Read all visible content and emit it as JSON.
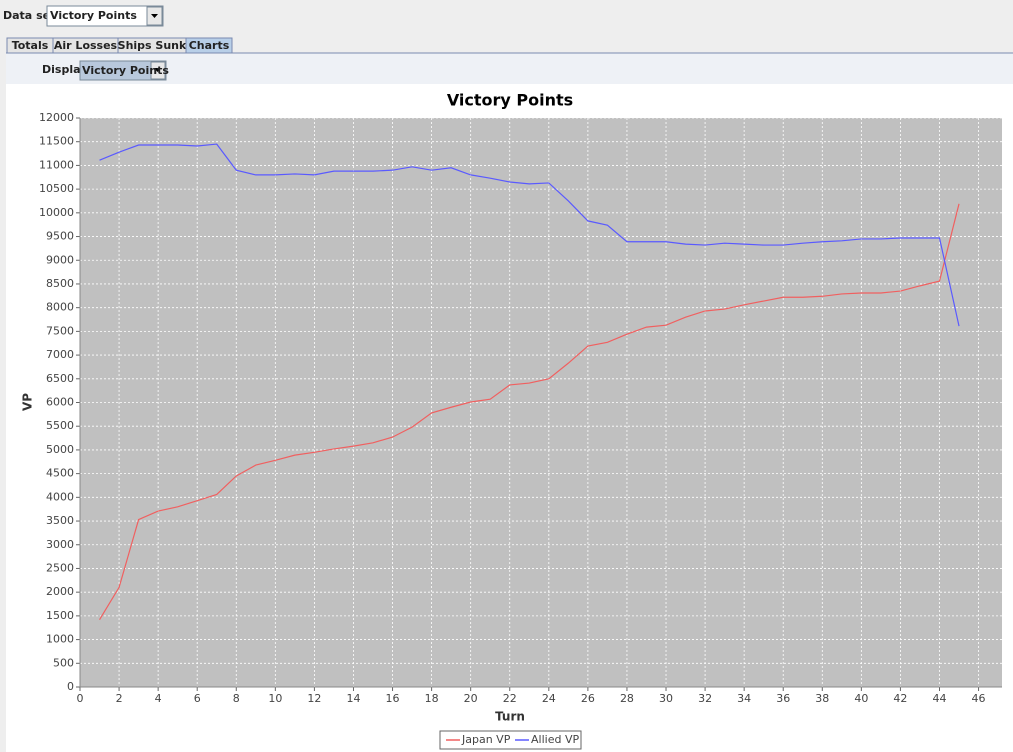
{
  "ui": {
    "data_set_label": "Data set:",
    "data_set_value": "Victory Points",
    "tabs": [
      "Totals",
      "Air Losses",
      "Ships Sunk",
      "Charts"
    ],
    "display_label": "Display:",
    "display_value": "Victory Points"
  },
  "chart_data": {
    "type": "line",
    "title": "Victory Points",
    "x_label": "Turn",
    "y_label": "VP",
    "x": [
      1,
      2,
      3,
      4,
      5,
      6,
      7,
      8,
      9,
      10,
      11,
      12,
      13,
      14,
      15,
      16,
      17,
      18,
      19,
      20,
      21,
      22,
      23,
      24,
      25,
      26,
      27,
      28,
      29,
      30,
      31,
      32,
      33,
      34,
      35,
      36,
      37,
      38,
      39,
      40,
      41,
      42,
      43,
      44,
      45
    ],
    "series": [
      {
        "name": "Japan VP",
        "color": "#f06060",
        "values": [
          1420,
          2100,
          3530,
          3710,
          3800,
          3930,
          4060,
          4450,
          4680,
          4780,
          4890,
          4950,
          5020,
          5080,
          5150,
          5270,
          5480,
          5780,
          5900,
          6010,
          6070,
          6370,
          6410,
          6500,
          6830,
          7190,
          7270,
          7440,
          7590,
          7630,
          7800,
          7930,
          7970,
          8060,
          8140,
          8220,
          8220,
          8240,
          8290,
          8310,
          8310,
          8350,
          8460,
          8560,
          10190
        ]
      },
      {
        "name": "Allied VP",
        "color": "#5a5aff",
        "values": [
          11110,
          11280,
          11430,
          11430,
          11430,
          11410,
          11450,
          10900,
          10800,
          10800,
          10820,
          10800,
          10880,
          10880,
          10880,
          10900,
          10970,
          10900,
          10950,
          10800,
          10730,
          10650,
          10610,
          10630,
          10250,
          9830,
          9740,
          9390,
          9390,
          9390,
          9340,
          9320,
          9360,
          9340,
          9320,
          9320,
          9360,
          9390,
          9410,
          9450,
          9450,
          9470,
          9470,
          9470,
          7610
        ]
      }
    ],
    "xlim": [
      0,
      47.2
    ],
    "xticks": [
      0,
      2,
      4,
      6,
      8,
      10,
      12,
      14,
      16,
      18,
      20,
      22,
      24,
      26,
      28,
      30,
      32,
      34,
      36,
      38,
      40,
      42,
      44,
      46
    ],
    "ylim": [
      0,
      12000
    ],
    "yticks": [
      0,
      500,
      1000,
      1500,
      2000,
      2500,
      3000,
      3500,
      4000,
      4500,
      5000,
      5500,
      6000,
      6500,
      7000,
      7500,
      8000,
      8500,
      9000,
      9500,
      10000,
      10500,
      11000,
      11500,
      12000
    ],
    "grid": true,
    "legend": "bottom"
  }
}
